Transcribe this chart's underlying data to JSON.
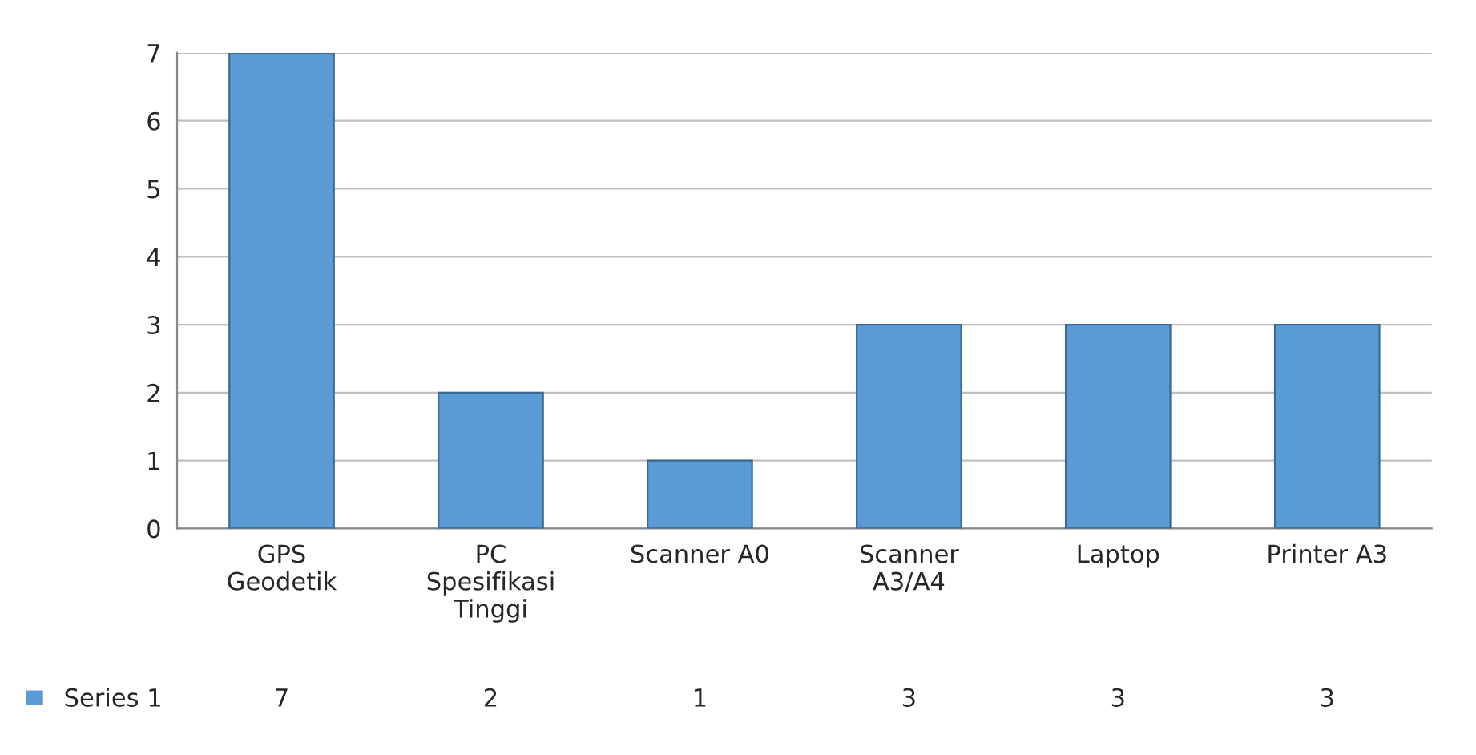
{
  "chart_data": {
    "type": "bar",
    "categories": [
      "GPS\nGeodetik",
      "PC\nSpesifikasi\nTinggi",
      "Scanner A0",
      "Scanner\nA3/A4",
      "Laptop",
      "Printer A3"
    ],
    "series": [
      {
        "name": "Series 1",
        "color": "#5b9bd5",
        "values": [
          7,
          2,
          1,
          3,
          3,
          3
        ]
      }
    ],
    "ylim": [
      0,
      7
    ],
    "yticks": [
      0,
      1,
      2,
      3,
      4,
      5,
      6,
      7
    ],
    "grid": "y",
    "data_labels": true,
    "legend": "bottom left"
  }
}
